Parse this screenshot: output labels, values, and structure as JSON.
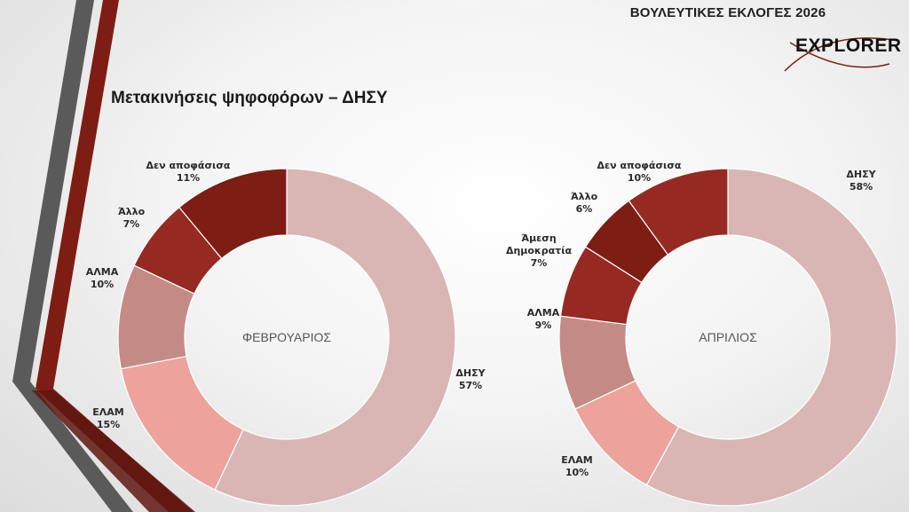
{
  "header": {
    "title": "ΒΟΥΛΕΥΤΙΚΕΣ ΕΚΛΟΓΕΣ 2026",
    "logo_text": "EXPLORER"
  },
  "page": {
    "title": "Μετακινήσεις ψηφοφόρων – ΔΗΣΥ"
  },
  "chart_data": [
    {
      "type": "pie",
      "title": "ΦΕΒΡΟΥΑΡΙΟΣ",
      "categories": [
        "ΔΗΣΥ",
        "ΕΛΑΜ",
        "ΑΛΜΑ",
        "Άλλο",
        "Δεν αποφάσισα"
      ],
      "values": [
        57,
        15,
        10,
        7,
        11
      ],
      "value_labels": [
        "57%",
        "15%",
        "10%",
        "7%",
        "11%"
      ],
      "colors": [
        "#d9b6b4",
        "#eca39c",
        "#c48b85",
        "#962a22",
        "#7e1d14"
      ]
    },
    {
      "type": "pie",
      "title": "ΑΠΡΙΛΙΟΣ",
      "categories": [
        "ΔΗΣΥ",
        "ΕΛΑΜ",
        "ΑΛΜΑ",
        "Άμεση Δημοκρατία",
        "Άλλο",
        "Δεν αποφάσισα"
      ],
      "values": [
        58,
        10,
        9,
        7,
        6,
        10
      ],
      "value_labels": [
        "58%",
        "10%",
        "9%",
        "7%",
        "6%",
        "10%"
      ],
      "colors": [
        "#d9b6b4",
        "#eca39c",
        "#c48b85",
        "#962a22",
        "#7e1d14",
        "#962a22"
      ]
    }
  ]
}
